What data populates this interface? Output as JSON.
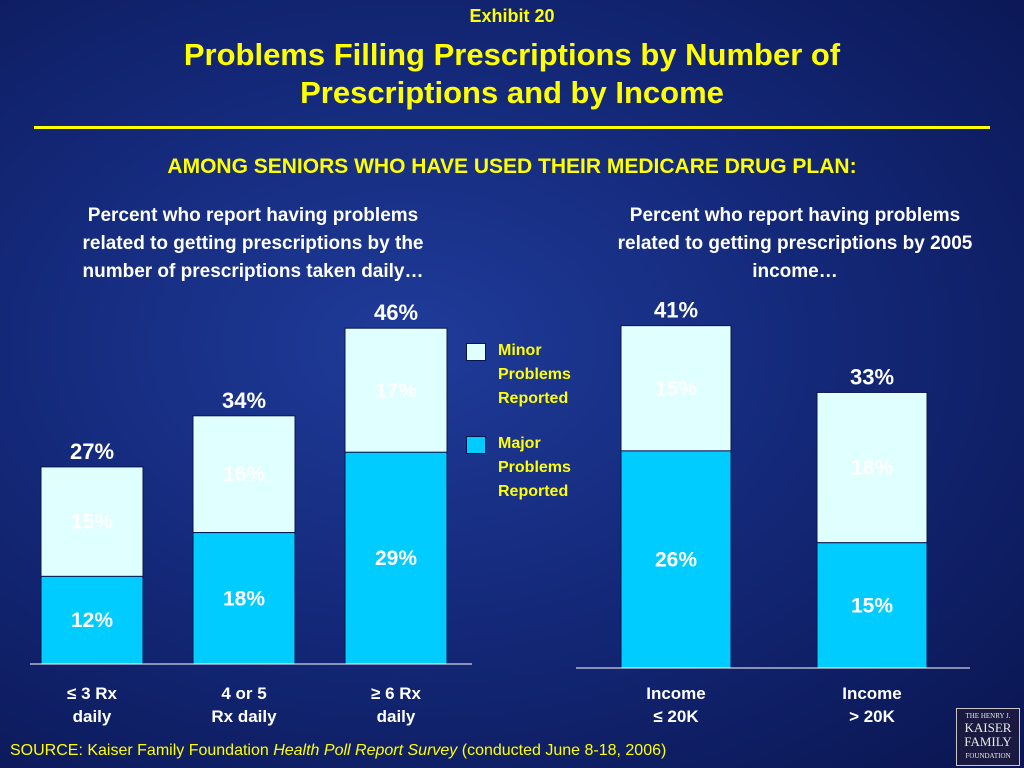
{
  "header": {
    "exhibit": "Exhibit 20",
    "title_line1": "Problems Filling Prescriptions by Number of",
    "title_line2": "Prescriptions and by Income",
    "subtitle": "AMONG SENIORS WHO HAVE USED THEIR MEDICARE DRUG PLAN:"
  },
  "panels": {
    "left_heading": [
      "Percent who report having problems",
      "related to getting prescriptions by the",
      "number of prescriptions taken daily…"
    ],
    "right_heading": [
      "Percent who report having problems",
      "related to getting prescriptions by 2005",
      "income…"
    ]
  },
  "legend": {
    "minor": [
      "Minor",
      "Problems",
      "Reported"
    ],
    "major": [
      "Major",
      "Problems",
      "Reported"
    ]
  },
  "colors": {
    "minor": "#e0ffff",
    "major": "#00ccff",
    "axis": "#ffffff"
  },
  "chart_data": [
    {
      "type": "bar",
      "stacked": true,
      "categories": [
        [
          "≤ 3 Rx",
          "daily"
        ],
        [
          "4 or 5",
          "Rx daily"
        ],
        [
          "≥ 6 Rx",
          "daily"
        ]
      ],
      "series": [
        {
          "name": "Major Problems Reported",
          "values": [
            12,
            18,
            29
          ],
          "labels": [
            "12%",
            "18%",
            "29%"
          ]
        },
        {
          "name": "Minor Problems Reported",
          "values": [
            15,
            16,
            17
          ],
          "labels": [
            "15%",
            "16%",
            "17%"
          ]
        }
      ],
      "totals": [
        27,
        34,
        46
      ],
      "total_labels": [
        "27%",
        "34%",
        "46%"
      ],
      "ylim": [
        0,
        50
      ]
    },
    {
      "type": "bar",
      "stacked": true,
      "categories": [
        [
          "Income",
          "≤ 20K"
        ],
        [
          "Income",
          "> 20K"
        ]
      ],
      "series": [
        {
          "name": "Major Problems Reported",
          "values": [
            26,
            15
          ],
          "labels": [
            "26%",
            "15%"
          ]
        },
        {
          "name": "Minor Problems Reported",
          "values": [
            15,
            18
          ],
          "labels": [
            "15%",
            "18%"
          ]
        }
      ],
      "totals": [
        41,
        33
      ],
      "total_labels": [
        "41%",
        "33%"
      ],
      "ylim": [
        0,
        50
      ]
    }
  ],
  "source": {
    "prefix": "SOURCE: Kaiser Family Foundation ",
    "italic": "Health Poll Report Survey",
    "suffix": " (conducted June 8-18, 2006)"
  },
  "logo": {
    "line1": "THE HENRY J.",
    "line2": "KAISER",
    "line3": "FAMILY",
    "line4": "FOUNDATION"
  }
}
